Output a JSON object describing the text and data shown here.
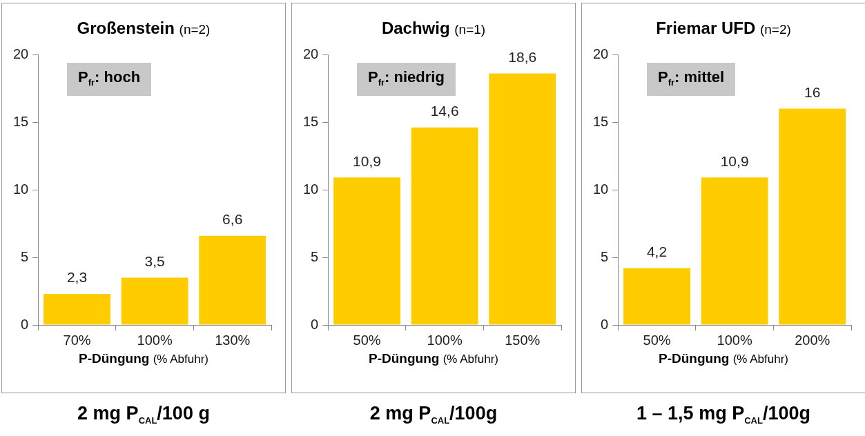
{
  "chart_data": [
    {
      "type": "bar",
      "title": "Großenstein",
      "subtitle": "(n=2)",
      "xlabel": "P-Düngung (% Abfuhr)",
      "categories": [
        "70%",
        "100%",
        "130%"
      ],
      "values": [
        2.3,
        3.5,
        6.6
      ],
      "value_labels": [
        "2,3",
        "3,5",
        "6,6"
      ],
      "color": "#ffcc00",
      "ylim": [
        0,
        20
      ],
      "yticks": [
        0,
        5,
        10,
        15,
        20
      ],
      "grid": false,
      "legend": false,
      "annotations": [
        "P$_{fr}$: hoch",
        "2 mg P$_{CAL}$/100 g"
      ]
    },
    {
      "type": "bar",
      "title": "Dachwig",
      "subtitle": "(n=1)",
      "xlabel": "P-Düngung (% Abfuhr)",
      "categories": [
        "50%",
        "100%",
        "150%"
      ],
      "values": [
        10.9,
        14.6,
        18.6
      ],
      "value_labels": [
        "10,9",
        "14,6",
        "18,6"
      ],
      "color": "#ffcc00",
      "ylim": [
        0,
        20
      ],
      "yticks": [
        0,
        5,
        10,
        15,
        20
      ],
      "grid": false,
      "legend": false,
      "annotations": [
        "P$_{fr}$: niedrig",
        "2 mg P$_{CAL}$/100g"
      ]
    },
    {
      "type": "bar",
      "title": "Friemar UFD",
      "subtitle": "(n=2)",
      "xlabel": "P-Düngung (% Abfuhr)",
      "categories": [
        "50%",
        "100%",
        "200%"
      ],
      "values": [
        4.2,
        10.9,
        16
      ],
      "value_labels": [
        "4,2",
        "10,9",
        "16"
      ],
      "color": "#ffcc00",
      "ylim": [
        0,
        20
      ],
      "yticks": [
        0,
        5,
        10,
        15,
        20
      ],
      "grid": false,
      "legend": false,
      "annotations": [
        "P$_{fr}$: mittel",
        "1 – 1,5 mg P$_{CAL}$/100g"
      ]
    }
  ]
}
